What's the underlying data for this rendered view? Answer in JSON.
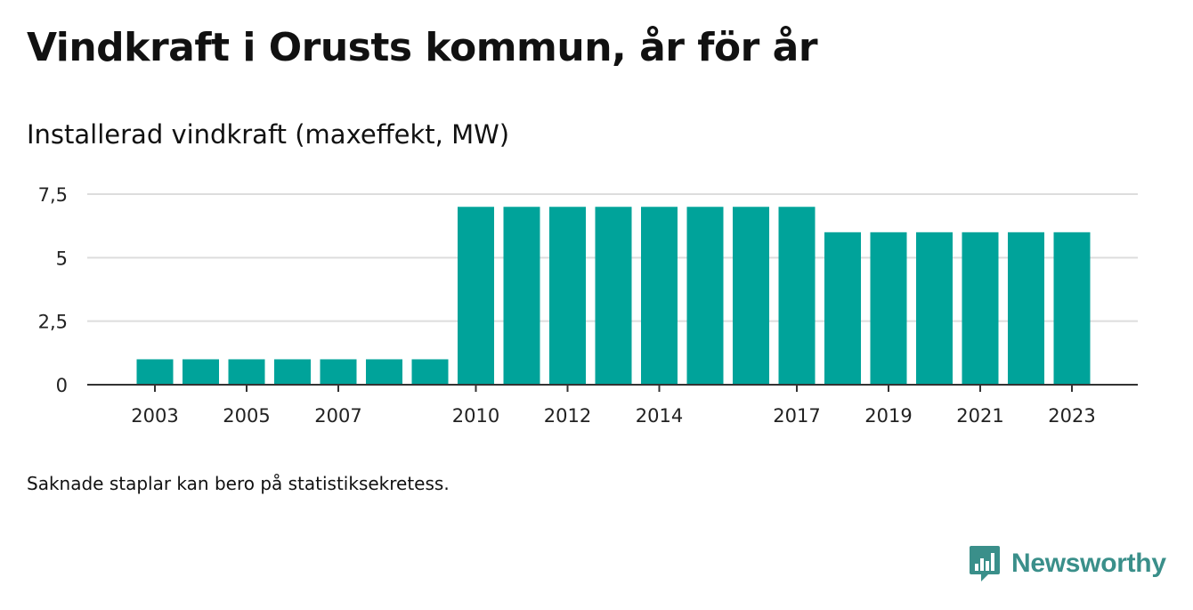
{
  "header": {
    "title": "Vindkraft i Orusts kommun, år för år",
    "subtitle": "Installerad vindkraft (maxeffekt, MW)"
  },
  "footer": {
    "note": "Saknade staplar kan bero på statistiksekretess.",
    "brand": "Newsworthy",
    "brand_icon": "bar-chart-speech-bubble-icon"
  },
  "colors": {
    "bar": "#00a39a",
    "grid": "#dddddd",
    "axis": "#333333",
    "brand": "#3a8f8a"
  },
  "chart_data": {
    "type": "bar",
    "title": "Vindkraft i Orusts kommun, år för år",
    "subtitle": "Installerad vindkraft (maxeffekt, MW)",
    "xlabel": "",
    "ylabel": "",
    "categories": [
      "2003",
      "2004",
      "2005",
      "2006",
      "2007",
      "2008",
      "2009",
      "2010",
      "2011",
      "2012",
      "2013",
      "2014",
      "2015",
      "2016",
      "2017",
      "2018",
      "2019",
      "2020",
      "2021",
      "2022",
      "2023"
    ],
    "values": [
      1,
      1,
      1,
      1,
      1,
      1,
      1,
      7,
      7,
      7,
      7,
      7,
      7,
      7,
      7,
      6,
      6,
      6,
      6,
      6,
      6
    ],
    "x_tick_labels": [
      "2003",
      "2005",
      "2007",
      "2010",
      "2012",
      "2014",
      "2017",
      "2019",
      "2021",
      "2023"
    ],
    "y_ticks": [
      0,
      2.5,
      5,
      7.5
    ],
    "y_tick_labels": [
      "0",
      "2,5",
      "5",
      "7,5"
    ],
    "ylim": [
      0,
      7.5
    ],
    "grid": true,
    "legend": "none"
  }
}
